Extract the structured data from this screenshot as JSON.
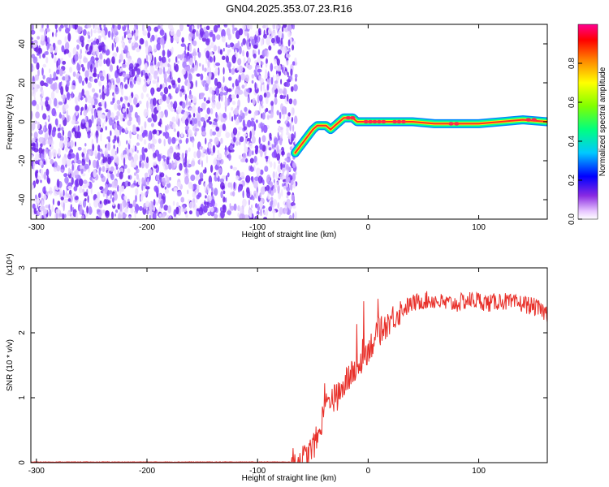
{
  "title": "GN04.2025.353.07.23.R16",
  "colors": {
    "snr_line": "#e8302a",
    "spectrogram_noise": "#7a2df0",
    "track_core": "#ff2a2a",
    "track_mid": "#ffee00",
    "track_outer": "#00ff9a",
    "track_edge": "#0088ff"
  },
  "chart_data": [
    {
      "type": "heatmap",
      "xlabel": "Height of straight line (km)",
      "ylabel": "Frequency (Hz)",
      "xlim": [
        -305,
        162
      ],
      "ylim": [
        -50,
        50
      ],
      "xticks": [
        -300,
        -200,
        -100,
        0,
        100
      ],
      "yticks": [
        -40,
        -20,
        0,
        20,
        40
      ],
      "colorbar": {
        "label": "Normalized spectral amplitude",
        "range": [
          0,
          1
        ],
        "ticks": [
          "0.0",
          "0.2",
          "0.4",
          "0.6",
          "0.8"
        ]
      },
      "noise_region_x": [
        -305,
        -65
      ],
      "track": {
        "x": [
          -66,
          -62,
          -58,
          -54,
          -50,
          -46,
          -42,
          -38,
          -34,
          -30,
          -26,
          -22,
          -18,
          -14,
          -10,
          -6,
          0,
          20,
          40,
          60,
          80,
          100,
          120,
          140,
          162
        ],
        "y": [
          -16,
          -13,
          -10,
          -7,
          -4,
          -2,
          -2,
          -2,
          -4,
          -2,
          0,
          2,
          2,
          2,
          0,
          0,
          0,
          0,
          0,
          -1,
          -1,
          -1,
          0,
          1,
          0
        ]
      }
    },
    {
      "type": "line",
      "xlabel": "Height of straight line (km)",
      "ylabel": "SNR (10 * v/v)",
      "y_multiplier": "(x10⁴)",
      "xlim": [
        -305,
        162
      ],
      "ylim": [
        0,
        3
      ],
      "xticks": [
        -300,
        -200,
        -100,
        0,
        100
      ],
      "yticks": [
        0,
        1,
        2,
        3
      ],
      "series": [
        {
          "x": [
            -305,
            -80,
            -65,
            -55,
            -45,
            -40,
            -35,
            -30,
            -25,
            -20,
            -15,
            -10,
            -5,
            0,
            10,
            20,
            30,
            40,
            50,
            60,
            70,
            80,
            90,
            100,
            110,
            120,
            130,
            140,
            150,
            162
          ],
          "y": [
            0.01,
            0.01,
            0.01,
            0.1,
            0.4,
            0.8,
            1.0,
            1.0,
            1.05,
            1.25,
            1.35,
            1.45,
            1.6,
            1.75,
            2.0,
            2.2,
            2.35,
            2.45,
            2.5,
            2.5,
            2.45,
            2.45,
            2.5,
            2.5,
            2.45,
            2.5,
            2.45,
            2.45,
            2.4,
            2.3
          ]
        }
      ]
    }
  ]
}
